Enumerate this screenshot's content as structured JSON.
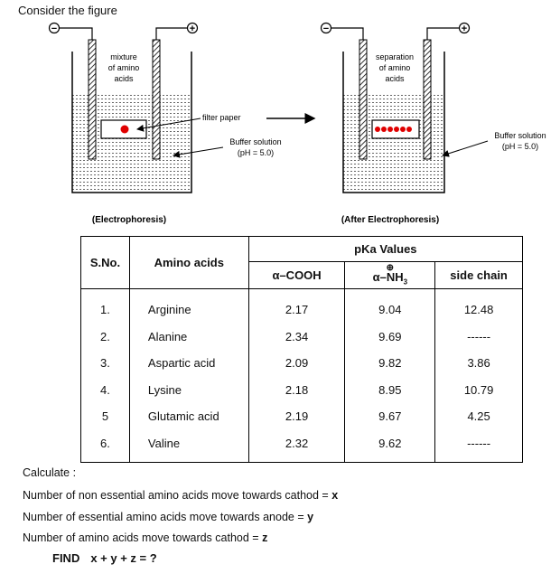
{
  "intro": "Consider the figure",
  "figure": {
    "left_cell": {
      "label_lines": [
        "mixture",
        "of amino",
        "acids"
      ],
      "filter_label": "filter paper",
      "buffer_lines": [
        "Buffer solution",
        "(pH = 5.0)"
      ],
      "caption": "(Electrophoresis)"
    },
    "right_cell": {
      "label_lines": [
        "separation",
        "of amino",
        "acids"
      ],
      "buffer_lines": [
        "Buffer solution",
        "(pH = 5.0)"
      ],
      "caption": "(After Electrophoresis)"
    },
    "neg_symbol": "−",
    "pos_symbol": "+"
  },
  "table": {
    "headers": {
      "sno": "S.No.",
      "amino": "Amino acids",
      "pka": "pKa Values",
      "cooh": "α–COOH",
      "nh3_plus": "⊕",
      "nh3": "α–NH",
      "nh3_sub": "3",
      "side": "side chain"
    },
    "rows": [
      {
        "sno": "1.",
        "name": "Arginine",
        "cooh": "2.17",
        "nh3": "9.04",
        "side": "12.48"
      },
      {
        "sno": "2.",
        "name": "Alanine",
        "cooh": "2.34",
        "nh3": "9.69",
        "side": "------"
      },
      {
        "sno": "3.",
        "name": "Aspartic acid",
        "cooh": "2.09",
        "nh3": "9.82",
        "side": "3.86"
      },
      {
        "sno": "4.",
        "name": "Lysine",
        "cooh": "2.18",
        "nh3": "8.95",
        "side": "10.79"
      },
      {
        "sno": "5",
        "name": "Glutamic acid",
        "cooh": "2.19",
        "nh3": "9.67",
        "side": "4.25"
      },
      {
        "sno": "6.",
        "name": "Valine",
        "cooh": "2.32",
        "nh3": "9.62",
        "side": "------"
      }
    ]
  },
  "calculate": "Calculate :",
  "questions": [
    {
      "text": "Number of non essential amino acids move towards cathod = ",
      "var": "x"
    },
    {
      "text": "Number of essential amino acids move towards anode = ",
      "var": "y"
    },
    {
      "text": "Number of amino acids move towards cathod = ",
      "var": "z"
    }
  ],
  "find": {
    "label": "FIND",
    "expr": "x + y + z = ?"
  }
}
